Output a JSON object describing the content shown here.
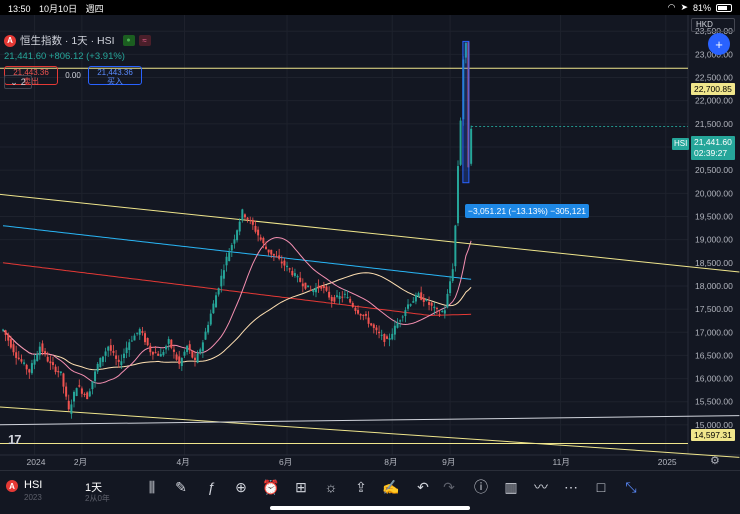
{
  "status_bar": {
    "time": "13:50",
    "date": "10月10日",
    "weekday": "週四",
    "battery": "81%"
  },
  "legend": {
    "logo_letter": "A",
    "title": "恒生指数 · 1天 · HSI",
    "price_line": "21,441.60  +806.12 (+3.91%)",
    "sell_price": "21,443.36",
    "sell_label": "卖出",
    "spread": "0.00",
    "buy_price": "21,443.36",
    "buy_label": "买入",
    "collapse_count": "2"
  },
  "currency": "HKD",
  "price_axis": [
    {
      "v": 23500,
      "label": "23,500.00"
    },
    {
      "v": 23000,
      "label": "23,000.00"
    },
    {
      "v": 22500,
      "label": "22,500.00"
    },
    {
      "v": 22000,
      "label": "22,000.00"
    },
    {
      "v": 21500,
      "label": "21,500.00"
    },
    {
      "v": 21000,
      "label": "21,000.00"
    },
    {
      "v": 20500,
      "label": "20,500.00"
    },
    {
      "v": 20000,
      "label": "20,000.00"
    },
    {
      "v": 19500,
      "label": "19,500.00"
    },
    {
      "v": 19000,
      "label": "19,000.00"
    },
    {
      "v": 18500,
      "label": "18,500.00"
    },
    {
      "v": 18000,
      "label": "18,000.00"
    },
    {
      "v": 17500,
      "label": "17,500.00"
    },
    {
      "v": 17000,
      "label": "17,000.00"
    },
    {
      "v": 16500,
      "label": "16,500.00"
    },
    {
      "v": 16000,
      "label": "16,000.00"
    },
    {
      "v": 15500,
      "label": "15,500.00"
    },
    {
      "v": 15000,
      "label": "15,000.00"
    }
  ],
  "time_axis": [
    {
      "label": "2024",
      "i": 12
    },
    {
      "label": "2月",
      "i": 30
    },
    {
      "label": "4月",
      "i": 69
    },
    {
      "label": "6月",
      "i": 108
    },
    {
      "label": "8月",
      "i": 148
    },
    {
      "label": "9月",
      "i": 170
    },
    {
      "label": "11月",
      "i": 212
    },
    {
      "label": "2025",
      "i": 252
    }
  ],
  "tags": {
    "resistance": "22,700.85",
    "last_price": "21,441.60",
    "countdown": "02:39:27",
    "support": "14,597.31",
    "symbol": "HSI"
  },
  "measure_label": "−3,051.21 (−13.13%) −305,121",
  "toolbar": {
    "symbol": "HSI",
    "symbol_sub": "2023",
    "interval": "1天",
    "interval_sub": "2从0年",
    "icons": [
      "candles-icon",
      "pen-icon",
      "formula-icon",
      "plus-circle-icon",
      "alarm-icon",
      "layout-icon",
      "idea-icon",
      "share-icon",
      "pencil-edit-icon",
      "undo-icon",
      "redo-icon",
      "info-icon",
      "bar-chart-icon",
      "drawing-tool-icon",
      "more-icon",
      "square-icon",
      "fullscreen-icon"
    ]
  },
  "colors": {
    "up": "#26a69a",
    "down": "#ef5350",
    "ma_fast": "#f48fb1",
    "ma_mid": "#ffe0b2",
    "ma_red": "#e53935",
    "ma_blue": "#29b6f6",
    "trend": "#f0e68c"
  },
  "chart_data": {
    "type": "candlestick",
    "title": "恒生指数 · 1天 · HSI",
    "ylim": [
      14350,
      23850
    ],
    "grid": true,
    "keypoints": [
      [
        0,
        17050
      ],
      [
        5,
        16500
      ],
      [
        10,
        16150
      ],
      [
        14,
        16700
      ],
      [
        18,
        16300
      ],
      [
        22,
        16100
      ],
      [
        25,
        15300
      ],
      [
        28,
        15850
      ],
      [
        32,
        15600
      ],
      [
        36,
        16300
      ],
      [
        40,
        16700
      ],
      [
        44,
        16300
      ],
      [
        48,
        16800
      ],
      [
        52,
        17050
      ],
      [
        56,
        16600
      ],
      [
        60,
        16500
      ],
      [
        63,
        16800
      ],
      [
        67,
        16300
      ],
      [
        70,
        16700
      ],
      [
        73,
        16350
      ],
      [
        76,
        16800
      ],
      [
        79,
        17400
      ],
      [
        82,
        18000
      ],
      [
        85,
        18600
      ],
      [
        88,
        19050
      ],
      [
        91,
        19600
      ],
      [
        95,
        19300
      ],
      [
        100,
        18800
      ],
      [
        104,
        18600
      ],
      [
        108,
        18400
      ],
      [
        113,
        18100
      ],
      [
        117,
        17900
      ],
      [
        121,
        18000
      ],
      [
        125,
        17700
      ],
      [
        130,
        17800
      ],
      [
        134,
        17500
      ],
      [
        138,
        17300
      ],
      [
        142,
        17000
      ],
      [
        146,
        16800
      ],
      [
        150,
        17200
      ],
      [
        154,
        17600
      ],
      [
        158,
        17800
      ],
      [
        162,
        17600
      ],
      [
        166,
        17400
      ],
      [
        168,
        17500
      ],
      [
        171,
        18400
      ],
      [
        172,
        19300
      ],
      [
        173,
        20600
      ],
      [
        174,
        21600
      ],
      [
        175,
        22900
      ],
      [
        176,
        23200
      ],
      [
        177,
        20600
      ],
      [
        178,
        21450
      ]
    ],
    "moving_averages": [
      "MA20",
      "MA60",
      "MA200",
      "MA250"
    ],
    "trendlines": [
      {
        "from": [
          -5,
          20000
        ],
        "to": [
          280,
          18300
        ]
      },
      {
        "from": [
          -5,
          15400
        ],
        "to": [
          280,
          14300
        ]
      },
      {
        "from": [
          -5,
          15000
        ],
        "to": [
          280,
          15200
        ]
      }
    ],
    "horizontal_levels": [
      22700.85,
      14597.31
    ],
    "measure": {
      "from_i": 176,
      "to_i": 176,
      "from_v": 23280,
      "to_v": 20229,
      "text": "−3,051.21 (−13.13%) −305,121"
    }
  }
}
